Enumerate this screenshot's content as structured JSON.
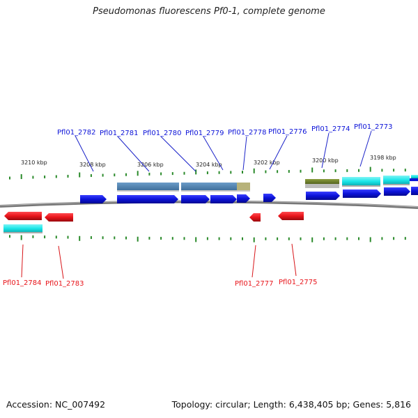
{
  "title": "Pseudomonas fluorescens Pf0-1, complete genome",
  "footer": {
    "accession": "Accession: NC_007492",
    "topology": "Topology: circular; Length: 6,438,405 bp; Genes: 5,816"
  },
  "positions": [
    "3210 kbp",
    "3208 kbp",
    "3206 kbp",
    "3204 kbp",
    "3202 kbp",
    "3200 kbp",
    "3198 kbp"
  ],
  "forward_genes": [
    "Pfl01_2782",
    "Pfl01_2781",
    "Pfl01_2780",
    "Pfl01_2779",
    "Pfl01_2778",
    "Pfl01_2776",
    "Pfl01_2774",
    "Pfl01_2773"
  ],
  "reverse_genes": [
    "Pfl01_2784",
    "Pfl01_2783",
    "Pfl01_2777",
    "Pfl01_2775"
  ],
  "colors": {
    "forward": "#0b12d8",
    "reverse": "#e8141a",
    "cds_blue": "#4a7fae",
    "cds_cyan": "#19e6e8",
    "cds_olive": "#6b7d2a",
    "cds_tan": "#b7b27a",
    "tick": "#2a8a2a",
    "backbone": "#7a7a7a"
  }
}
